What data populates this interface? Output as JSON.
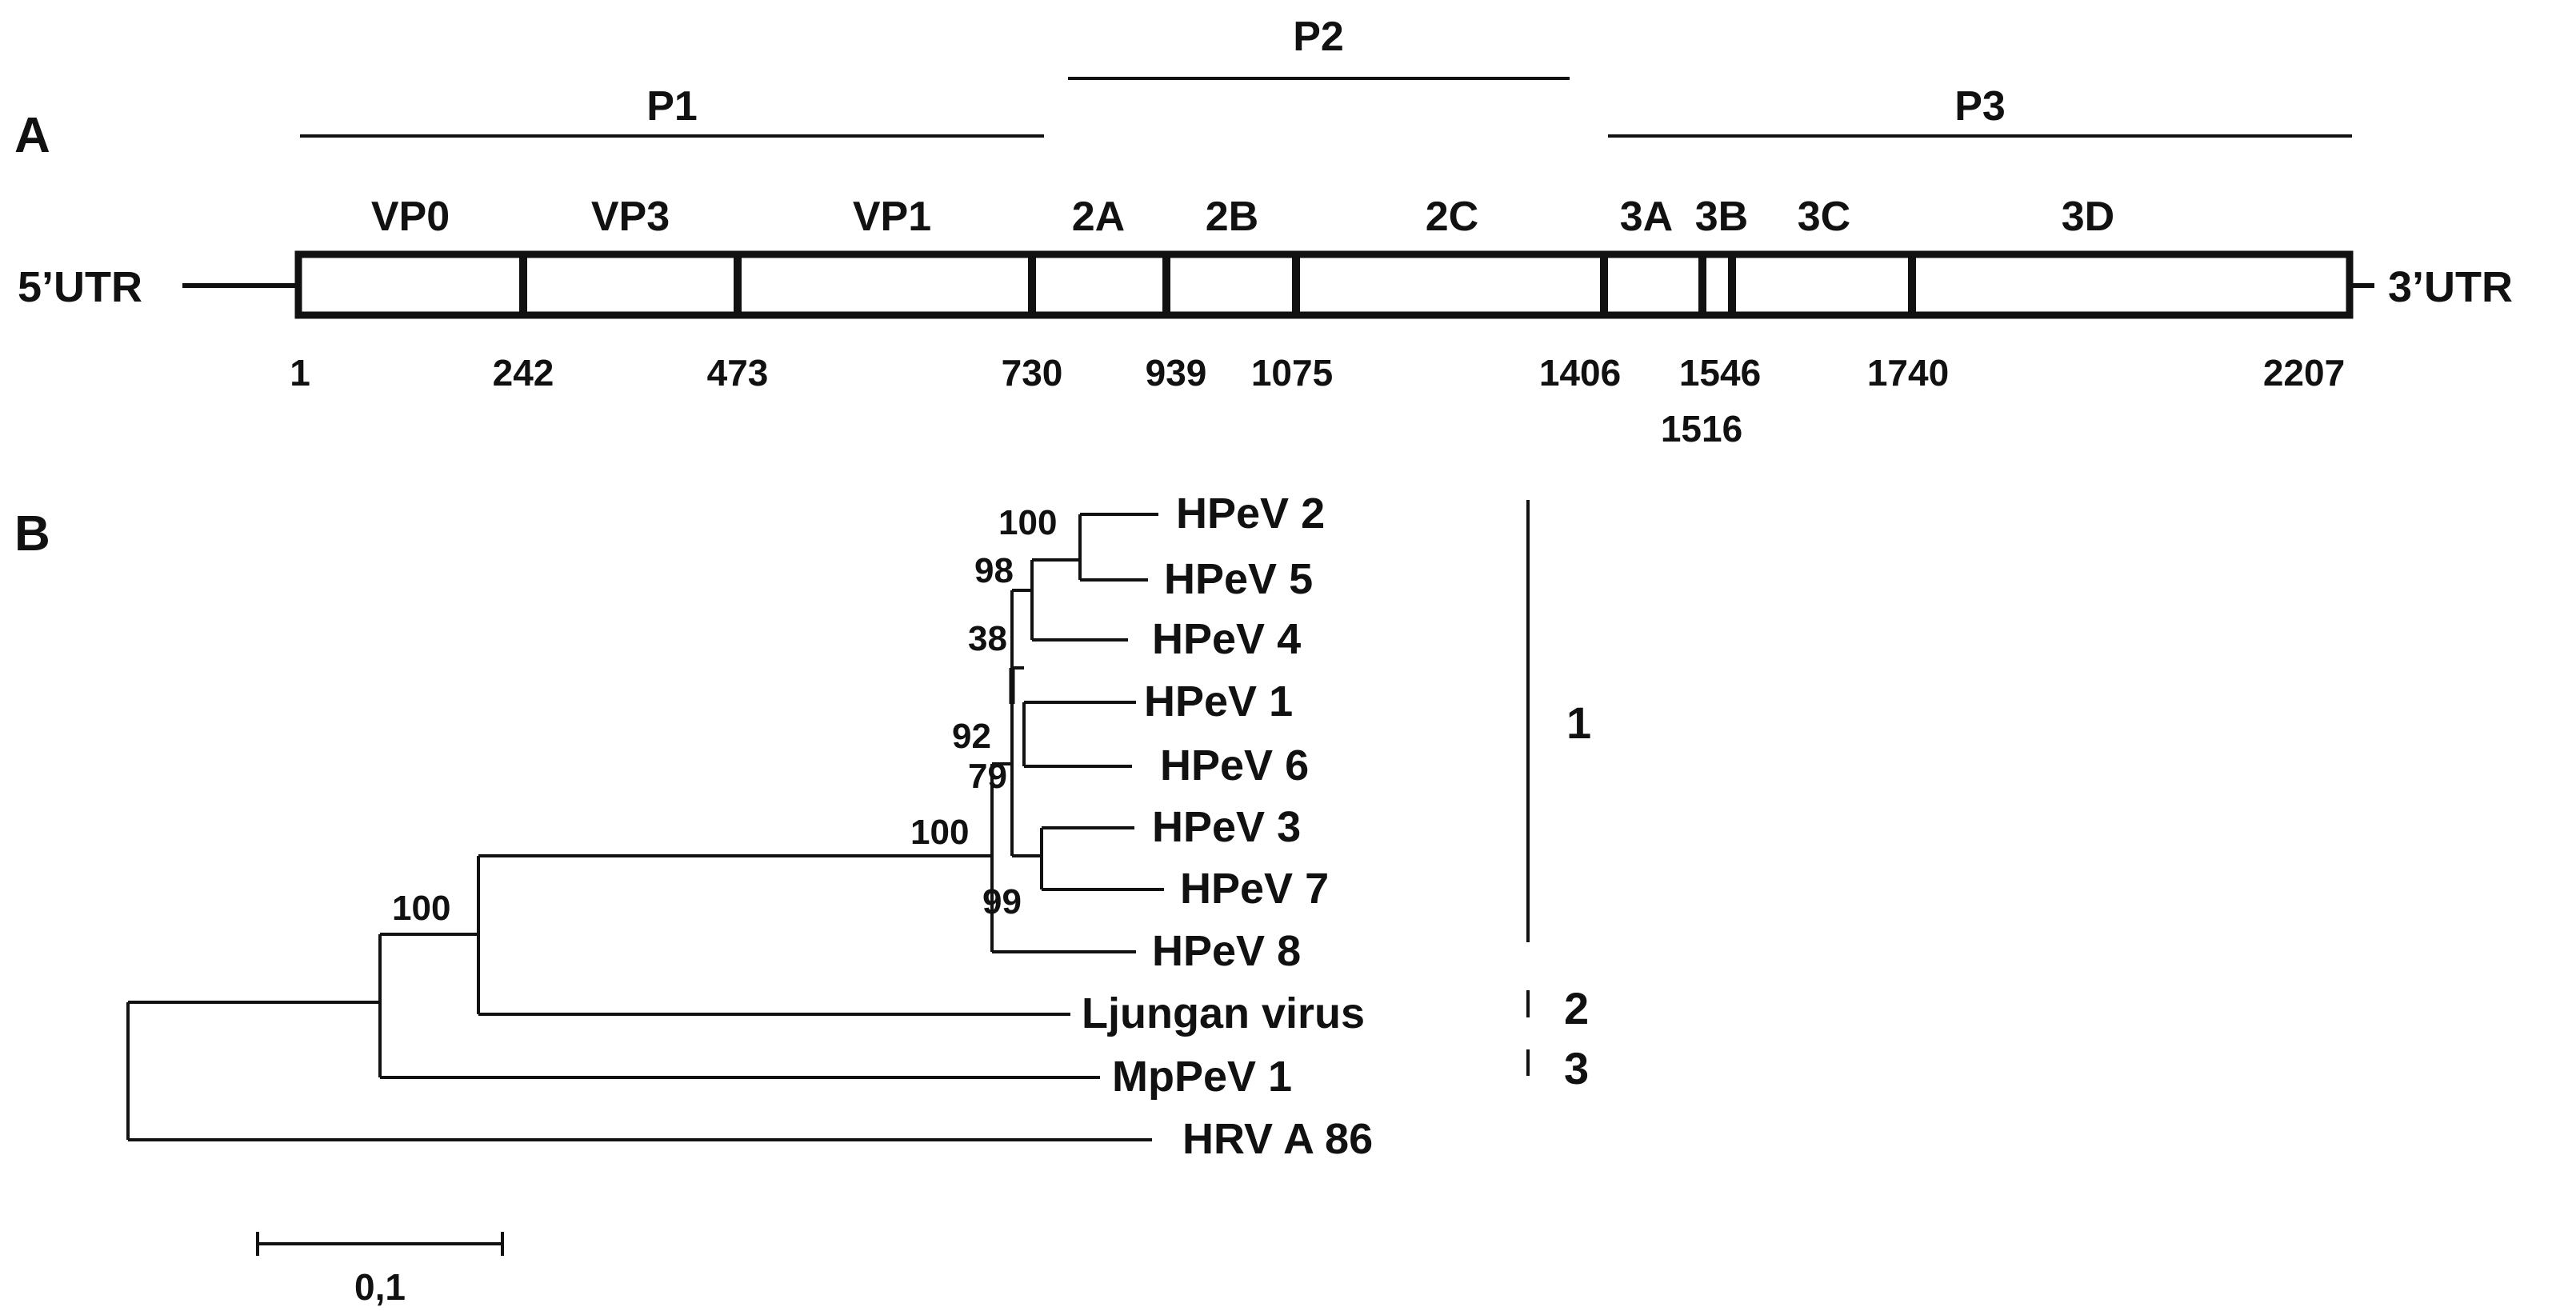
{
  "panel_a": {
    "label": "A",
    "utr5": "5’UTR",
    "utr3": "3’UTR",
    "regions": [
      {
        "label": "P1",
        "start": 1,
        "end": 730
      },
      {
        "label": "P2",
        "start": 730,
        "end": 1406
      },
      {
        "label": "P3",
        "start": 1406,
        "end": 2207
      }
    ],
    "proteins": [
      {
        "label": "VP0",
        "start": 1,
        "end": 242
      },
      {
        "label": "VP3",
        "start": 242,
        "end": 473
      },
      {
        "label": "VP1",
        "start": 473,
        "end": 730
      },
      {
        "label": "2A",
        "start": 730,
        "end": 939
      },
      {
        "label": "2B",
        "start": 939,
        "end": 1075
      },
      {
        "label": "2C",
        "start": 1075,
        "end": 1406
      },
      {
        "label": "3A",
        "start": 1406,
        "end": 1516
      },
      {
        "label": "3B",
        "start": 1516,
        "end": 1546
      },
      {
        "label": "3C",
        "start": 1546,
        "end": 1740
      },
      {
        "label": "3D",
        "start": 1740,
        "end": 2207
      }
    ],
    "positions": [
      "1",
      "242",
      "473",
      "730",
      "939",
      "1075",
      "1406",
      "1546",
      "1516",
      "1740",
      "2207"
    ]
  },
  "panel_b": {
    "label": "B",
    "taxa": [
      "HPeV 2",
      "HPeV 5",
      "HPeV 4",
      "HPeV 1",
      "HPeV 6",
      "HPeV 3",
      "HPeV 7",
      "HPeV 8",
      "Ljungan virus",
      "MpPeV 1",
      "HRV A 86"
    ],
    "bootstrap": [
      "100",
      "98",
      "38",
      "92",
      "79",
      "100",
      "99",
      "100"
    ],
    "groups": [
      "1",
      "2",
      "3"
    ],
    "scale_label": "0,1"
  }
}
